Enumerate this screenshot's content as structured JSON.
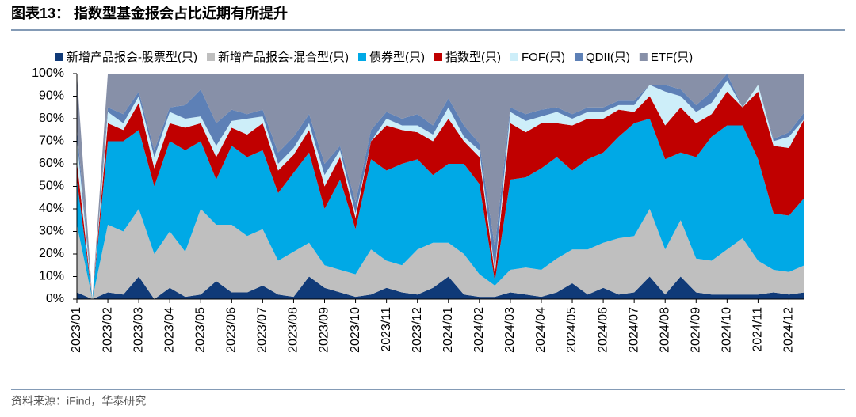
{
  "chart_data": {
    "type": "stacked-area",
    "title": "图表13：  指数型基金报会占比近期有所提升",
    "source": "资料来源：iFind，华泰研究",
    "categories": [
      "2023/01",
      null,
      "2023/02",
      null,
      "2023/03",
      null,
      "2023/04",
      null,
      "2023/05",
      null,
      "2023/06",
      null,
      "2023/07",
      null,
      "2023/08",
      null,
      "2023/09",
      null,
      "2023/10",
      null,
      "2023/11",
      null,
      "2023/12",
      null,
      "2024/01",
      null,
      "2024/02",
      null,
      "2024/03",
      null,
      "2024/04",
      null,
      "2024/05",
      null,
      "2024/06",
      null,
      "2024/07",
      null,
      "2024/08",
      null,
      "2024/09",
      null,
      "2024/10",
      null,
      "2024/11",
      null,
      "2024/12",
      null
    ],
    "series": [
      {
        "name": "新增产品报会-股票型(只)",
        "color": "#103a78",
        "values": [
          3,
          0,
          3,
          2,
          10,
          0,
          5,
          1,
          2,
          8,
          3,
          3,
          6,
          2,
          1,
          10,
          5,
          3,
          1,
          2,
          5,
          3,
          2,
          5,
          10,
          2,
          1,
          1,
          3,
          2,
          1,
          3,
          7,
          2,
          5,
          2,
          3,
          10,
          2,
          10,
          3,
          2,
          2,
          2,
          2,
          3,
          2,
          3
        ]
      },
      {
        "name": "新增产品报会-混合型(只)",
        "color": "#bfbfbf",
        "values": [
          30,
          0,
          30,
          28,
          30,
          20,
          25,
          20,
          38,
          25,
          30,
          25,
          25,
          15,
          20,
          15,
          10,
          10,
          10,
          20,
          12,
          12,
          20,
          20,
          15,
          18,
          10,
          5,
          10,
          12,
          12,
          15,
          15,
          20,
          20,
          25,
          25,
          30,
          20,
          25,
          15,
          15,
          20,
          25,
          15,
          10,
          10,
          12
        ]
      },
      {
        "name": "债券型(只)",
        "color": "#00a9e6",
        "values": [
          20,
          0,
          37,
          40,
          35,
          30,
          40,
          45,
          30,
          20,
          35,
          35,
          35,
          30,
          35,
          40,
          25,
          40,
          20,
          40,
          40,
          45,
          40,
          30,
          35,
          40,
          40,
          2,
          40,
          40,
          45,
          45,
          35,
          40,
          40,
          45,
          50,
          40,
          40,
          30,
          45,
          55,
          55,
          50,
          45,
          25,
          25,
          30
        ]
      },
      {
        "name": "指数型(只)",
        "color": "#c00000",
        "values": [
          8,
          0,
          8,
          5,
          12,
          8,
          8,
          10,
          8,
          10,
          8,
          10,
          12,
          10,
          8,
          10,
          10,
          10,
          5,
          8,
          20,
          15,
          12,
          15,
          20,
          10,
          12,
          3,
          25,
          20,
          20,
          15,
          20,
          18,
          15,
          12,
          5,
          10,
          15,
          20,
          15,
          10,
          15,
          8,
          30,
          30,
          30,
          35
        ]
      },
      {
        "name": "FOF(只)",
        "color": "#cdeef9",
        "values": [
          10,
          0,
          5,
          3,
          3,
          5,
          5,
          4,
          3,
          5,
          3,
          7,
          3,
          3,
          3,
          3,
          5,
          3,
          2,
          0,
          3,
          2,
          3,
          3,
          5,
          2,
          3,
          2,
          5,
          5,
          3,
          5,
          3,
          3,
          3,
          2,
          3,
          5,
          15,
          5,
          5,
          5,
          5,
          0,
          3,
          2,
          5,
          0
        ]
      },
      {
        "name": "QDII(只)",
        "color": "#5d80b6",
        "values": [
          5,
          0,
          2,
          4,
          2,
          3,
          2,
          6,
          12,
          10,
          5,
          2,
          3,
          5,
          5,
          4,
          5,
          2,
          5,
          5,
          3,
          3,
          5,
          4,
          4,
          5,
          3,
          10,
          2,
          3,
          3,
          2,
          2,
          2,
          2,
          2,
          2,
          0,
          3,
          3,
          3,
          5,
          3,
          0,
          0,
          1,
          2,
          3
        ]
      },
      {
        "name": "ETF(只)",
        "color": "#8790a8",
        "values": [
          24,
          0,
          15,
          18,
          8,
          34,
          15,
          14,
          7,
          22,
          16,
          18,
          16,
          35,
          28,
          18,
          40,
          32,
          57,
          25,
          17,
          20,
          18,
          23,
          11,
          23,
          31,
          77,
          15,
          18,
          16,
          15,
          18,
          15,
          15,
          12,
          12,
          5,
          5,
          7,
          14,
          8,
          0,
          15,
          5,
          29,
          26,
          17
        ]
      }
    ],
    "ylim": [
      0,
      100
    ],
    "yticks": [
      {
        "value": 0,
        "label": "0%"
      },
      {
        "value": 10,
        "label": "10%"
      },
      {
        "value": 20,
        "label": "20%"
      },
      {
        "value": 30,
        "label": "30%"
      },
      {
        "value": 40,
        "label": "40%"
      },
      {
        "value": 50,
        "label": "50%"
      },
      {
        "value": 60,
        "label": "60%"
      },
      {
        "value": 70,
        "label": "70%"
      },
      {
        "value": 80,
        "label": "80%"
      },
      {
        "value": 90,
        "label": "90%"
      },
      {
        "value": 100,
        "label": "100%"
      }
    ]
  }
}
